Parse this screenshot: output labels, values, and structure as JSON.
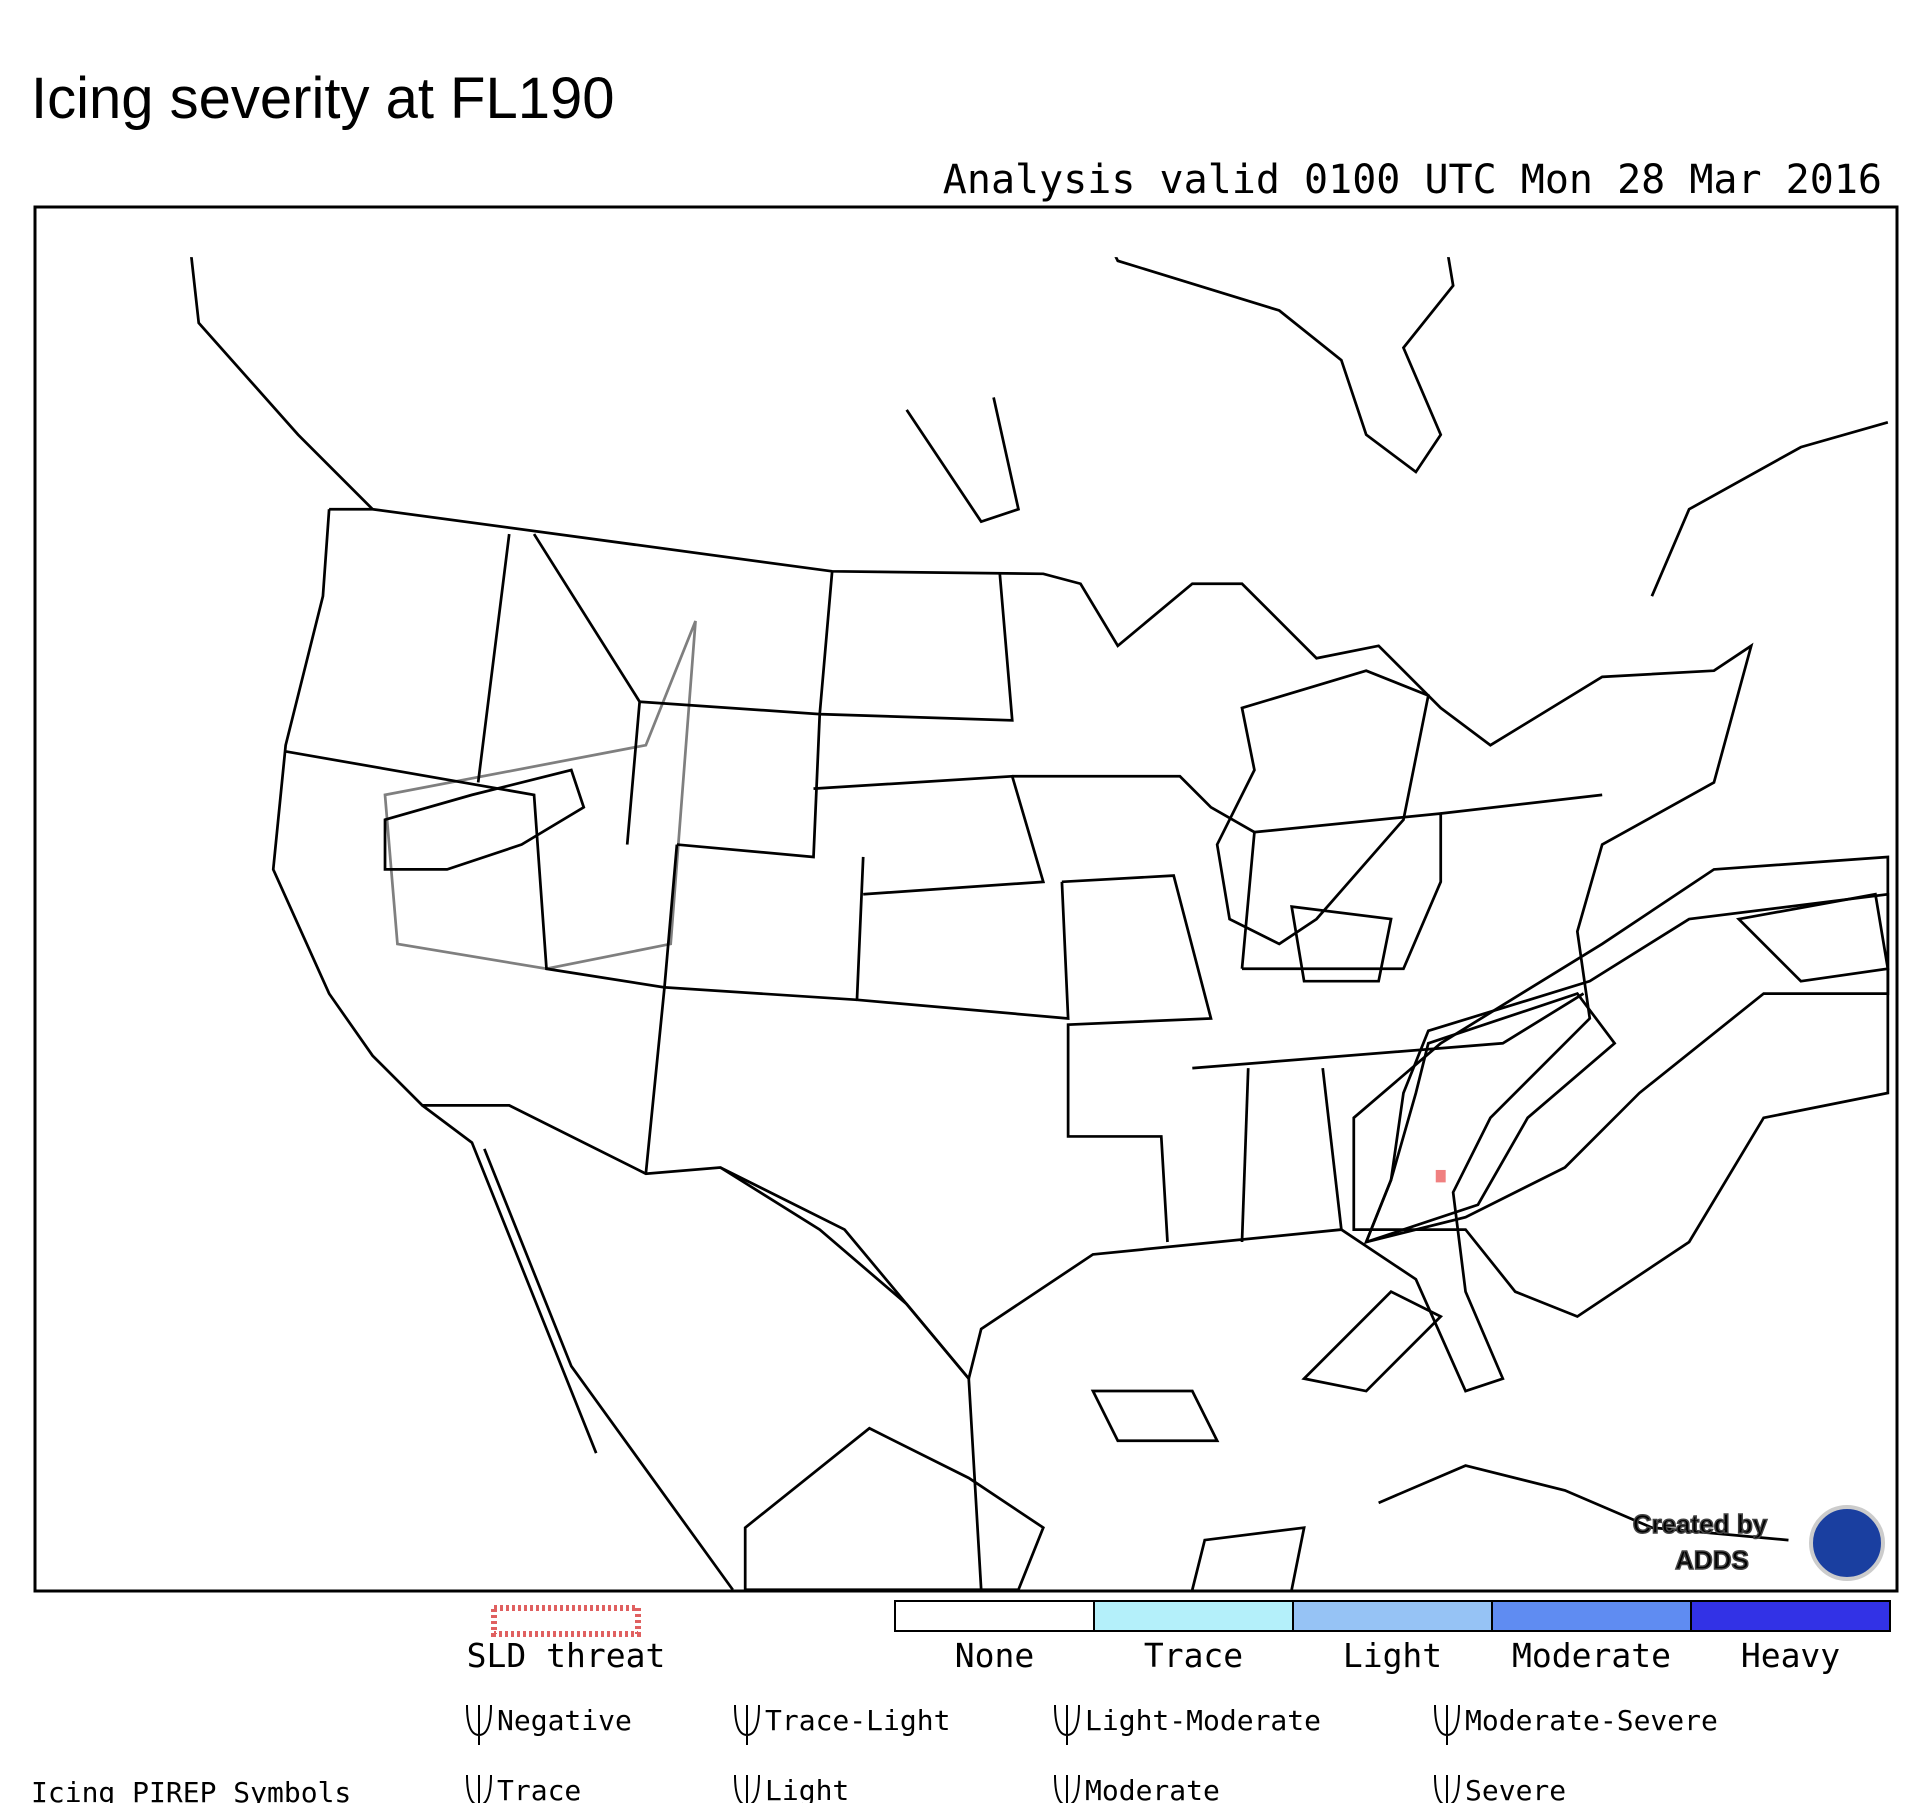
{
  "header": {
    "title": "Icing severity at FL190",
    "subtitle": "Analysis valid 0100 UTC Mon 28 Mar 2016"
  },
  "legend": {
    "sld": "SLD threat",
    "severity": [
      {
        "label": "None",
        "color": "#ffffff"
      },
      {
        "label": "Trace",
        "color": "#b4f0fa"
      },
      {
        "label": "Light",
        "color": "#96c3f5"
      },
      {
        "label": "Moderate",
        "color": "#5f8cf2"
      },
      {
        "label": "Heavy",
        "color": "#3232e6"
      }
    ]
  },
  "pirep": {
    "title": "Icing PIREP Symbols",
    "symbols": [
      "Negative",
      "Trace-Light",
      "Light-Moderate",
      "Moderate-Severe",
      "Trace",
      "Light",
      "Moderate",
      "Severe"
    ]
  },
  "credit": [
    "Created by",
    "ADDS"
  ]
}
